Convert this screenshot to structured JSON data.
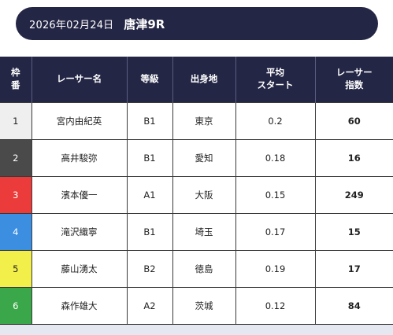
{
  "header": {
    "date": "2026年02月24日",
    "race": "唐津9R"
  },
  "table": {
    "headers": {
      "frame_line1": "枠",
      "frame_line2": "番",
      "name": "レーサー名",
      "grade": "等級",
      "origin": "出身地",
      "avg_start_line1": "平均",
      "avg_start_line2": "スタート",
      "index_line1": "レーサー",
      "index_line2": "指数"
    },
    "rows": [
      {
        "frame": "1",
        "name": "宮内由紀英",
        "grade": "B1",
        "origin": "東京",
        "avg_start": "0.2",
        "index": "60",
        "color": "#efefef"
      },
      {
        "frame": "2",
        "name": "高井駿弥",
        "grade": "B1",
        "origin": "愛知",
        "avg_start": "0.18",
        "index": "16",
        "color": "#4a4a4a"
      },
      {
        "frame": "3",
        "name": "濱本優一",
        "grade": "A1",
        "origin": "大阪",
        "avg_start": "0.15",
        "index": "249",
        "color": "#ec3b3b"
      },
      {
        "frame": "4",
        "name": "滝沢織寧",
        "grade": "B1",
        "origin": "埼玉",
        "avg_start": "0.17",
        "index": "15",
        "color": "#3b8ee0"
      },
      {
        "frame": "5",
        "name": "藤山湧太",
        "grade": "B2",
        "origin": "徳島",
        "avg_start": "0.19",
        "index": "17",
        "color": "#f2ee4a"
      },
      {
        "frame": "6",
        "name": "森作雄大",
        "grade": "A2",
        "origin": "茨城",
        "avg_start": "0.12",
        "index": "84",
        "color": "#3aa84a"
      }
    ]
  },
  "colors": {
    "header_bg": "#242645",
    "header_text": "#ffffff"
  }
}
